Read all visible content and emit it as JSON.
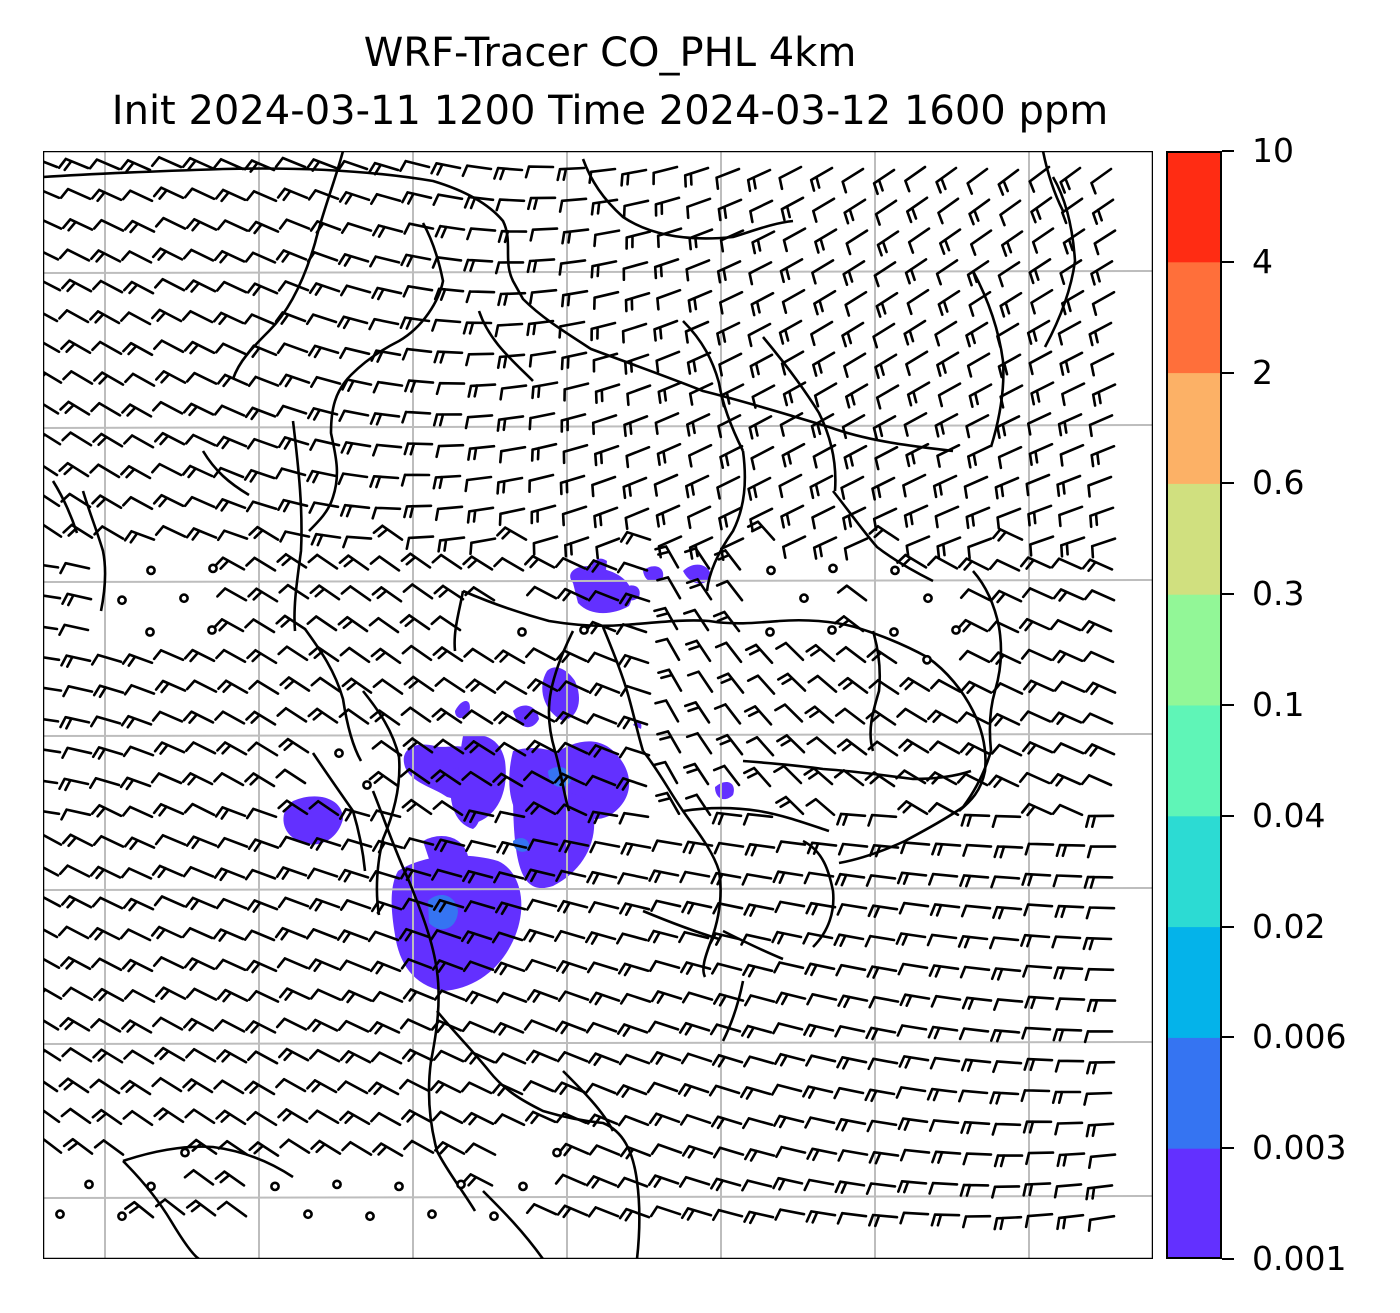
{
  "title": {
    "line1": "WRF-Tracer CO_PHL 4km",
    "line2": "Init 2024-03-11 1200 Time 2024-03-12 1600 ppm"
  },
  "colorbar": {
    "levels": [
      "0.001",
      "0.003",
      "0.006",
      "0.02",
      "0.04",
      "0.1",
      "0.3",
      "0.6",
      "2",
      "4",
      "10"
    ],
    "colors": [
      "#6330ff",
      "#3574f2",
      "#04b3ea",
      "#2cdbd3",
      "#5ff5b7",
      "#92f797",
      "#d0e07f",
      "#fcb166",
      "#ff6f3a",
      "#ff2c13"
    ]
  },
  "map": {
    "plume_color_low": "#6330ff",
    "plume_color_mid": "#3574f2",
    "grid_color": "#bdbdbd",
    "coast_color": "#000000"
  }
}
